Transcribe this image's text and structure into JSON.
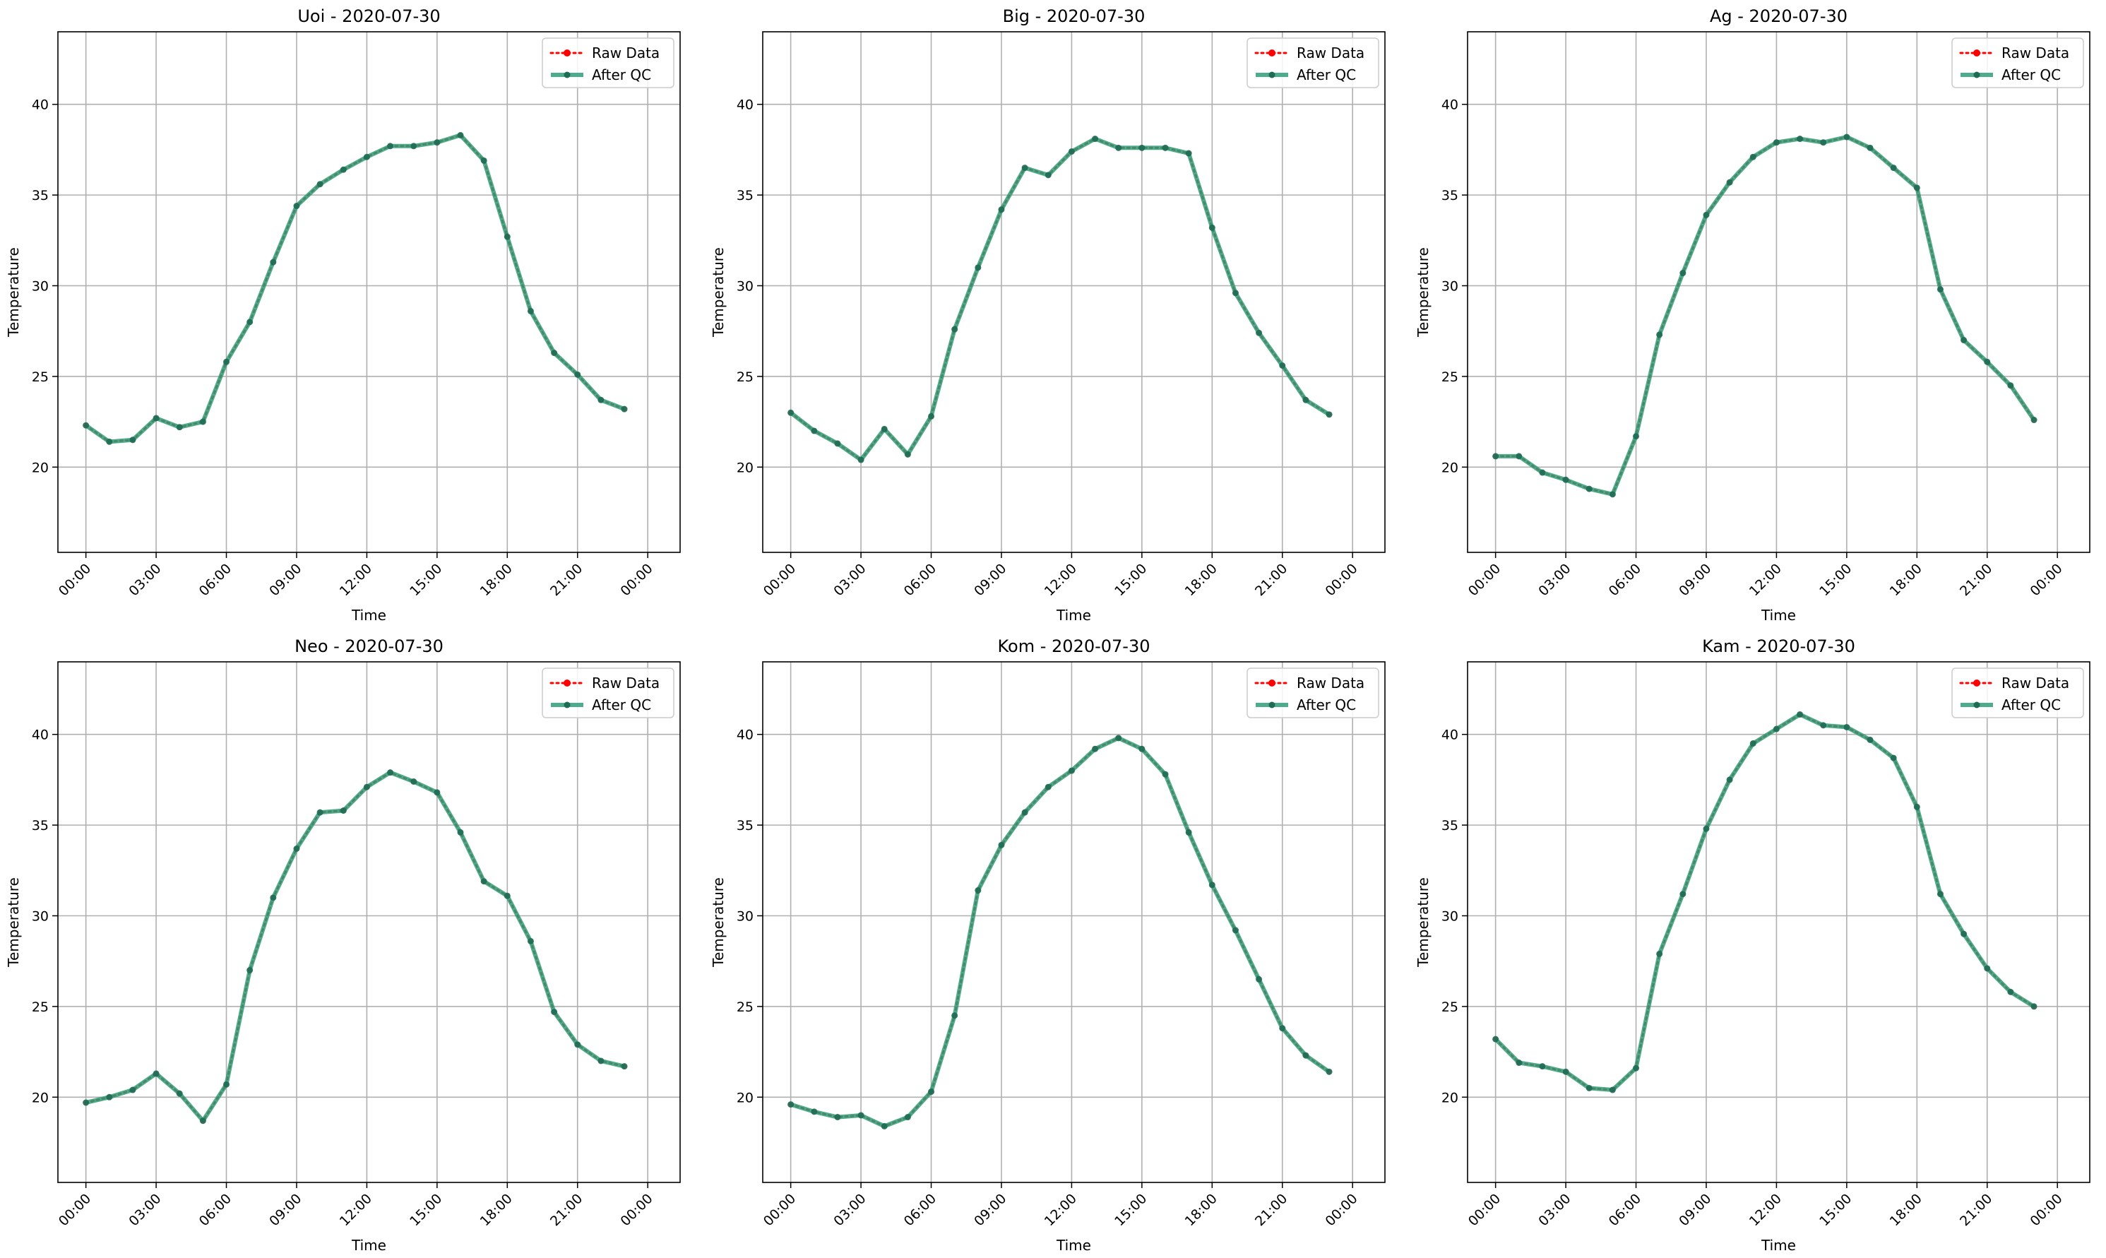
{
  "figure": {
    "background": "#ffffff",
    "colors": {
      "raw": "#ff0000",
      "qc": "#2e9e78",
      "qc_marker": "#1f6b55",
      "grid": "#b0b0b0"
    }
  },
  "chart_data": [
    {
      "type": "line",
      "title": "Uoi - 2020-07-30",
      "xlabel": "Time",
      "ylabel": "Temperature",
      "xticks": [
        "00:00",
        "03:00",
        "06:00",
        "09:00",
        "12:00",
        "15:00",
        "18:00",
        "21:00",
        "00:00"
      ],
      "yticks": [
        20,
        25,
        30,
        35,
        40
      ],
      "ylim": [
        15.3,
        44.0
      ],
      "x": [
        "00:00",
        "01:00",
        "02:00",
        "03:00",
        "04:00",
        "05:00",
        "06:00",
        "07:00",
        "08:00",
        "09:00",
        "10:00",
        "11:00",
        "12:00",
        "13:00",
        "14:00",
        "15:00",
        "16:00",
        "17:00",
        "18:00",
        "19:00",
        "20:00",
        "21:00",
        "22:00",
        "23:00"
      ],
      "grid": true,
      "legend": "top-right",
      "series": [
        {
          "name": "Raw Data",
          "values": [
            22.3,
            21.4,
            21.5,
            22.7,
            22.2,
            22.5,
            25.8,
            28.0,
            31.3,
            34.4,
            35.6,
            36.4,
            37.1,
            37.7,
            37.7,
            37.9,
            38.3,
            36.9,
            32.7,
            28.6,
            26.3,
            25.1,
            23.7,
            23.2
          ]
        },
        {
          "name": "After QC",
          "values": [
            22.3,
            21.4,
            21.5,
            22.7,
            22.2,
            22.5,
            25.8,
            28.0,
            31.3,
            34.4,
            35.6,
            36.4,
            37.1,
            37.7,
            37.7,
            37.9,
            38.3,
            36.9,
            32.7,
            28.6,
            26.3,
            25.1,
            23.7,
            23.2
          ]
        }
      ]
    },
    {
      "type": "line",
      "title": "Big - 2020-07-30",
      "xlabel": "Time",
      "ylabel": "Temperature",
      "xticks": [
        "00:00",
        "03:00",
        "06:00",
        "09:00",
        "12:00",
        "15:00",
        "18:00",
        "21:00",
        "00:00"
      ],
      "yticks": [
        20,
        25,
        30,
        35,
        40
      ],
      "ylim": [
        15.3,
        44.0
      ],
      "x": [
        "00:00",
        "01:00",
        "02:00",
        "03:00",
        "04:00",
        "05:00",
        "06:00",
        "07:00",
        "08:00",
        "09:00",
        "10:00",
        "11:00",
        "12:00",
        "13:00",
        "14:00",
        "15:00",
        "16:00",
        "17:00",
        "18:00",
        "19:00",
        "20:00",
        "21:00",
        "22:00",
        "23:00"
      ],
      "grid": true,
      "legend": "top-right",
      "series": [
        {
          "name": "Raw Data",
          "values": [
            23.0,
            22.0,
            21.3,
            20.4,
            22.1,
            20.7,
            22.8,
            27.6,
            31.0,
            34.2,
            36.5,
            36.1,
            37.4,
            38.1,
            37.6,
            37.6,
            37.6,
            37.3,
            33.2,
            29.6,
            27.4,
            25.6,
            23.7,
            22.9
          ]
        },
        {
          "name": "After QC",
          "values": [
            23.0,
            22.0,
            21.3,
            20.4,
            22.1,
            20.7,
            22.8,
            27.6,
            31.0,
            34.2,
            36.5,
            36.1,
            37.4,
            38.1,
            37.6,
            37.6,
            37.6,
            37.3,
            33.2,
            29.6,
            27.4,
            25.6,
            23.7,
            22.9
          ]
        }
      ]
    },
    {
      "type": "line",
      "title": "Ag - 2020-07-30",
      "xlabel": "Time",
      "ylabel": "Temperature",
      "xticks": [
        "00:00",
        "03:00",
        "06:00",
        "09:00",
        "12:00",
        "15:00",
        "18:00",
        "21:00",
        "00:00"
      ],
      "yticks": [
        20,
        25,
        30,
        35,
        40
      ],
      "ylim": [
        15.3,
        44.0
      ],
      "x": [
        "00:00",
        "01:00",
        "02:00",
        "03:00",
        "04:00",
        "05:00",
        "06:00",
        "07:00",
        "08:00",
        "09:00",
        "10:00",
        "11:00",
        "12:00",
        "13:00",
        "14:00",
        "15:00",
        "16:00",
        "17:00",
        "18:00",
        "19:00",
        "20:00",
        "21:00",
        "22:00",
        "23:00"
      ],
      "grid": true,
      "legend": "top-right",
      "series": [
        {
          "name": "Raw Data",
          "values": [
            20.6,
            20.6,
            19.7,
            19.3,
            18.8,
            18.5,
            21.7,
            27.3,
            30.7,
            33.9,
            35.7,
            37.1,
            37.9,
            38.1,
            37.9,
            38.2,
            37.6,
            36.5,
            35.4,
            29.8,
            27.0,
            25.8,
            24.5,
            22.6
          ]
        },
        {
          "name": "After QC",
          "values": [
            20.6,
            20.6,
            19.7,
            19.3,
            18.8,
            18.5,
            21.7,
            27.3,
            30.7,
            33.9,
            35.7,
            37.1,
            37.9,
            38.1,
            37.9,
            38.2,
            37.6,
            36.5,
            35.4,
            29.8,
            27.0,
            25.8,
            24.5,
            22.6
          ]
        }
      ]
    },
    {
      "type": "line",
      "title": "Neo - 2020-07-30",
      "xlabel": "Time",
      "ylabel": "Temperature",
      "xticks": [
        "00:00",
        "03:00",
        "06:00",
        "09:00",
        "12:00",
        "15:00",
        "18:00",
        "21:00",
        "00:00"
      ],
      "yticks": [
        20,
        25,
        30,
        35,
        40
      ],
      "ylim": [
        15.3,
        44.0
      ],
      "x": [
        "00:00",
        "01:00",
        "02:00",
        "03:00",
        "04:00",
        "05:00",
        "06:00",
        "07:00",
        "08:00",
        "09:00",
        "10:00",
        "11:00",
        "12:00",
        "13:00",
        "14:00",
        "15:00",
        "16:00",
        "17:00",
        "18:00",
        "19:00",
        "20:00",
        "21:00",
        "22:00",
        "23:00"
      ],
      "grid": true,
      "legend": "top-right",
      "series": [
        {
          "name": "Raw Data",
          "values": [
            19.7,
            20.0,
            20.4,
            21.3,
            20.2,
            18.7,
            20.7,
            27.0,
            31.0,
            33.7,
            35.7,
            35.8,
            37.1,
            37.9,
            37.4,
            36.8,
            34.6,
            31.9,
            31.1,
            28.6,
            24.7,
            22.9,
            22.0,
            21.7
          ]
        },
        {
          "name": "After QC",
          "values": [
            19.7,
            20.0,
            20.4,
            21.3,
            20.2,
            18.7,
            20.7,
            27.0,
            31.0,
            33.7,
            35.7,
            35.8,
            37.1,
            37.9,
            37.4,
            36.8,
            34.6,
            31.9,
            31.1,
            28.6,
            24.7,
            22.9,
            22.0,
            21.7
          ]
        }
      ]
    },
    {
      "type": "line",
      "title": "Kom - 2020-07-30",
      "xlabel": "Time",
      "ylabel": "Temperature",
      "xticks": [
        "00:00",
        "03:00",
        "06:00",
        "09:00",
        "12:00",
        "15:00",
        "18:00",
        "21:00",
        "00:00"
      ],
      "yticks": [
        20,
        25,
        30,
        35,
        40
      ],
      "ylim": [
        15.3,
        44.0
      ],
      "x": [
        "00:00",
        "01:00",
        "02:00",
        "03:00",
        "04:00",
        "05:00",
        "06:00",
        "07:00",
        "08:00",
        "09:00",
        "10:00",
        "11:00",
        "12:00",
        "13:00",
        "14:00",
        "15:00",
        "16:00",
        "17:00",
        "18:00",
        "19:00",
        "20:00",
        "21:00",
        "22:00",
        "23:00"
      ],
      "grid": true,
      "legend": "top-right",
      "series": [
        {
          "name": "Raw Data",
          "values": [
            19.6,
            19.2,
            18.9,
            19.0,
            18.4,
            18.9,
            20.3,
            24.5,
            31.4,
            33.9,
            35.7,
            37.1,
            38.0,
            39.2,
            39.8,
            39.2,
            37.8,
            34.6,
            31.7,
            29.2,
            26.5,
            23.8,
            22.3,
            21.4
          ]
        },
        {
          "name": "After QC",
          "values": [
            19.6,
            19.2,
            18.9,
            19.0,
            18.4,
            18.9,
            20.3,
            24.5,
            31.4,
            33.9,
            35.7,
            37.1,
            38.0,
            39.2,
            39.8,
            39.2,
            37.8,
            34.6,
            31.7,
            29.2,
            26.5,
            23.8,
            22.3,
            21.4
          ]
        }
      ]
    },
    {
      "type": "line",
      "title": "Kam - 2020-07-30",
      "xlabel": "Time",
      "ylabel": "Temperature",
      "xticks": [
        "00:00",
        "03:00",
        "06:00",
        "09:00",
        "12:00",
        "15:00",
        "18:00",
        "21:00",
        "00:00"
      ],
      "yticks": [
        20,
        25,
        30,
        35,
        40
      ],
      "ylim": [
        15.3,
        44.0
      ],
      "x": [
        "00:00",
        "01:00",
        "02:00",
        "03:00",
        "04:00",
        "05:00",
        "06:00",
        "07:00",
        "08:00",
        "09:00",
        "10:00",
        "11:00",
        "12:00",
        "13:00",
        "14:00",
        "15:00",
        "16:00",
        "17:00",
        "18:00",
        "19:00",
        "20:00",
        "21:00",
        "22:00",
        "23:00"
      ],
      "grid": true,
      "legend": "top-right",
      "series": [
        {
          "name": "Raw Data",
          "values": [
            23.2,
            21.9,
            21.7,
            21.4,
            20.5,
            20.4,
            21.6,
            27.9,
            31.2,
            34.8,
            37.5,
            39.5,
            40.3,
            41.1,
            40.5,
            40.4,
            39.7,
            38.7,
            36.0,
            31.2,
            29.0,
            27.1,
            25.8,
            25.0
          ]
        },
        {
          "name": "After QC",
          "values": [
            23.2,
            21.9,
            21.7,
            21.4,
            20.5,
            20.4,
            21.6,
            27.9,
            31.2,
            34.8,
            37.5,
            39.5,
            40.3,
            41.1,
            40.5,
            40.4,
            39.7,
            38.7,
            36.0,
            31.2,
            29.0,
            27.1,
            25.8,
            25.0
          ]
        }
      ]
    }
  ]
}
